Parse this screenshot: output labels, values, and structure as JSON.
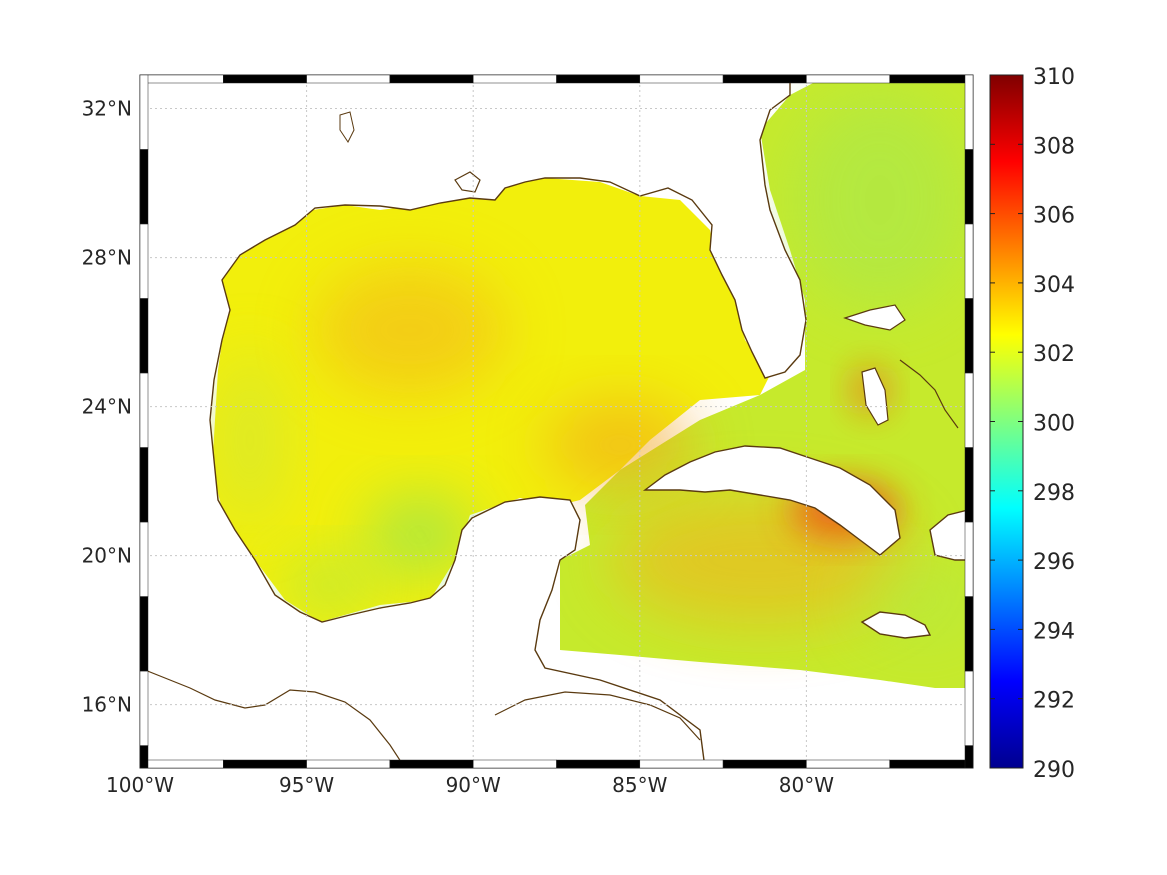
{
  "map": {
    "lon_range": [
      -100,
      -75
    ],
    "lat_range": [
      14.3,
      32.9
    ],
    "grid": true,
    "x_ticks": [
      {
        "value": -100,
        "label": "100°W"
      },
      {
        "value": -95,
        "label": "95°W"
      },
      {
        "value": -90,
        "label": "90°W"
      },
      {
        "value": -85,
        "label": "85°W"
      },
      {
        "value": -80,
        "label": "80°W"
      }
    ],
    "y_ticks": [
      {
        "value": 16,
        "label": "16°N"
      },
      {
        "value": 20,
        "label": "20°N"
      },
      {
        "value": 24,
        "label": "24°N"
      },
      {
        "value": 28,
        "label": "28°N"
      },
      {
        "value": 32,
        "label": "32°N"
      }
    ],
    "coast_color": "#5a3a10",
    "land_color": "#ffffff",
    "field_base_color": "#f2f20a"
  },
  "colorbar": {
    "min": 290,
    "max": 310,
    "colormap": "jet",
    "ticks": [
      {
        "value": 290,
        "label": "290"
      },
      {
        "value": 292,
        "label": "292"
      },
      {
        "value": 294,
        "label": "294"
      },
      {
        "value": 296,
        "label": "296"
      },
      {
        "value": 298,
        "label": "298"
      },
      {
        "value": 300,
        "label": "300"
      },
      {
        "value": 302,
        "label": "302"
      },
      {
        "value": 304,
        "label": "304"
      },
      {
        "value": 306,
        "label": "306"
      },
      {
        "value": 308,
        "label": "308"
      },
      {
        "value": 310,
        "label": "310"
      }
    ]
  }
}
